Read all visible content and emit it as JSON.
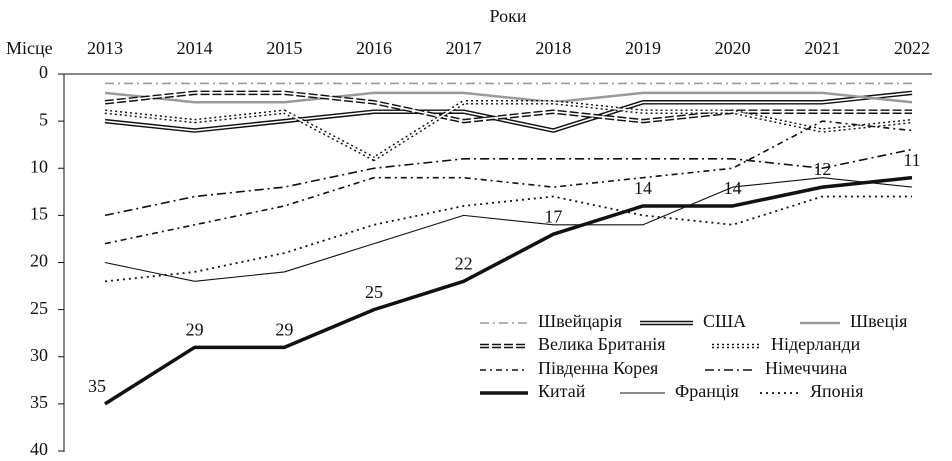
{
  "chart_data": {
    "type": "line",
    "x_label": "Роки",
    "y_label": "Місце",
    "categories": [
      "2013",
      "2014",
      "2015",
      "2016",
      "2017",
      "2018",
      "2019",
      "2020",
      "2021",
      "2022"
    ],
    "ylim": [
      0,
      40
    ],
    "yticks": [
      0,
      5,
      10,
      15,
      20,
      25,
      30,
      35,
      40
    ],
    "y_inverted": true,
    "series": [
      {
        "name": "Швейцарія",
        "color": "#9a9a9a",
        "style": "dash-dot",
        "values": [
          1,
          1,
          1,
          1,
          1,
          1,
          1,
          1,
          1,
          1
        ]
      },
      {
        "name": "США",
        "color": "#111111",
        "style": "double",
        "values": [
          5,
          6,
          5,
          4,
          4,
          6,
          3,
          3,
          3,
          2
        ]
      },
      {
        "name": "Швеція",
        "color": "#9a9a9a",
        "style": "solid-thick",
        "values": [
          2,
          3,
          3,
          2,
          2,
          3,
          2,
          2,
          2,
          3
        ]
      },
      {
        "name": "Велика Британія",
        "color": "#111111",
        "style": "double-dash",
        "values": [
          3,
          2,
          2,
          3,
          5,
          4,
          5,
          4,
          4,
          4
        ]
      },
      {
        "name": "Нідерланди",
        "color": "#111111",
        "style": "double-dot",
        "values": [
          4,
          5,
          4,
          9,
          3,
          3,
          4,
          4,
          6,
          5
        ]
      },
      {
        "name": "Південна Корея",
        "color": "#111111",
        "style": "dash-dot-fine",
        "values": [
          18,
          16,
          14,
          11,
          11,
          12,
          11,
          10,
          5,
          6
        ]
      },
      {
        "name": "Німеччина",
        "color": "#111111",
        "style": "dash-dot",
        "values": [
          15,
          13,
          12,
          10,
          9,
          9,
          9,
          9,
          10,
          8
        ]
      },
      {
        "name": "Китай",
        "color": "#111111",
        "style": "bold",
        "values": [
          35,
          29,
          29,
          25,
          22,
          17,
          14,
          14,
          12,
          11
        ],
        "show_labels": true
      },
      {
        "name": "Франція",
        "color": "#111111",
        "style": "thin",
        "values": [
          20,
          22,
          21,
          18,
          15,
          16,
          16,
          12,
          11,
          12
        ]
      },
      {
        "name": "Японія",
        "color": "#111111",
        "style": "dot",
        "values": [
          22,
          21,
          19,
          16,
          14,
          13,
          15,
          16,
          13,
          13
        ]
      }
    ]
  }
}
